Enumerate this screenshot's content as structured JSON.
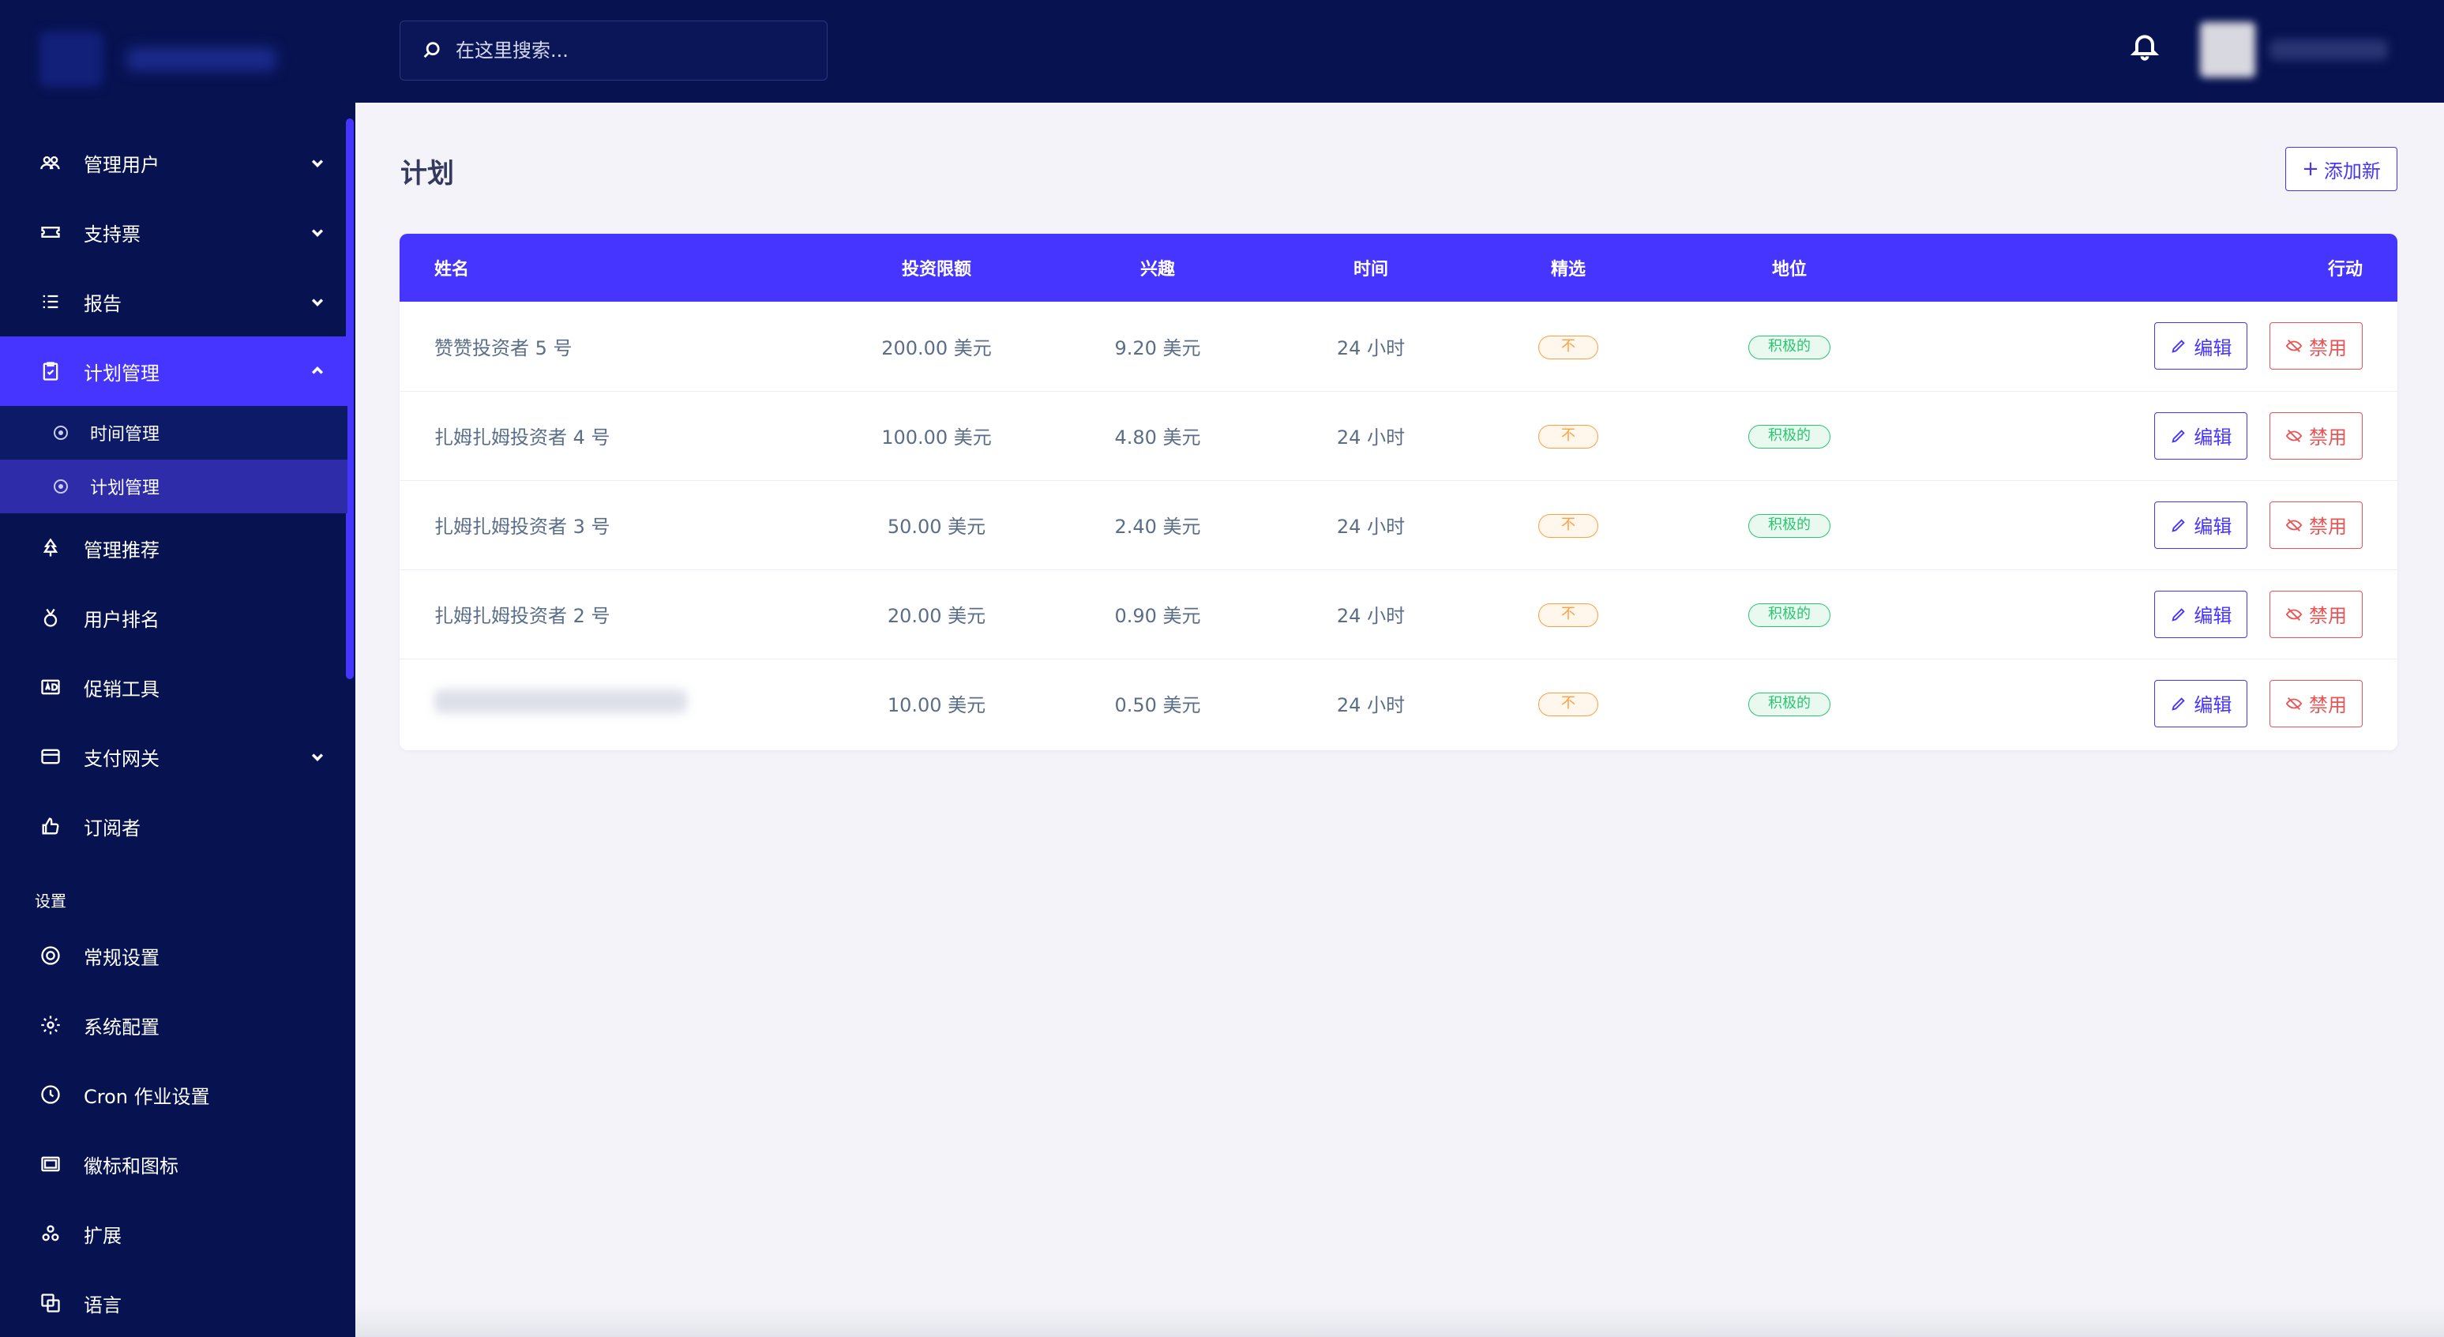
{
  "search": {
    "placeholder": "在这里搜索..."
  },
  "sidebar": {
    "items": [
      {
        "label": "管理用户",
        "icon": "users-cog-icon",
        "expandable": true
      },
      {
        "label": "支持票",
        "icon": "ticket-icon",
        "expandable": true
      },
      {
        "label": "报告",
        "icon": "list-icon",
        "expandable": true
      },
      {
        "label": "计划管理",
        "icon": "clipboard-check-icon",
        "expandable": true,
        "expanded": true,
        "active": true
      },
      {
        "label": "管理推荐",
        "icon": "tree-icon",
        "expandable": false
      },
      {
        "label": "用户排名",
        "icon": "medal-icon",
        "expandable": false
      },
      {
        "label": "促销工具",
        "icon": "ad-icon",
        "expandable": false
      },
      {
        "label": "支付网关",
        "icon": "credit-card-icon",
        "expandable": true
      },
      {
        "label": "订阅者",
        "icon": "thumbs-up-icon",
        "expandable": false
      }
    ],
    "sub_items": [
      {
        "label": "时间管理",
        "active": false
      },
      {
        "label": "计划管理",
        "active": true
      }
    ],
    "settings_label": "设置",
    "settings_items": [
      {
        "label": "常规设置",
        "icon": "life-ring-icon"
      },
      {
        "label": "系统配置",
        "icon": "gear-icon"
      },
      {
        "label": "Cron 作业设置",
        "icon": "clock-icon"
      },
      {
        "label": "徽标和图标",
        "icon": "images-icon"
      },
      {
        "label": "扩展",
        "icon": "cogs-icon"
      },
      {
        "label": "语言",
        "icon": "language-icon"
      }
    ]
  },
  "main": {
    "title": "计划",
    "add_button": "添加新",
    "table": {
      "headers": [
        "姓名",
        "投资限额",
        "兴趣",
        "时间",
        "精选",
        "地位",
        "行动"
      ],
      "rows": [
        {
          "name": "赞赞投资者 5 号",
          "limit": "200.00 美元",
          "interest": "9.20 美元",
          "time": "24 小时",
          "featured": "不",
          "status": "积极的"
        },
        {
          "name": "扎姆扎姆投资者 4 号",
          "limit": "100.00 美元",
          "interest": "4.80 美元",
          "time": "24 小时",
          "featured": "不",
          "status": "积极的"
        },
        {
          "name": "扎姆扎姆投资者 3 号",
          "limit": "50.00 美元",
          "interest": "2.40 美元",
          "time": "24 小时",
          "featured": "不",
          "status": "积极的"
        },
        {
          "name": "扎姆扎姆投资者 2 号",
          "limit": "20.00 美元",
          "interest": "0.90 美元",
          "time": "24 小时",
          "featured": "不",
          "status": "积极的"
        },
        {
          "name": "",
          "limit": "10.00 美元",
          "interest": "0.50 美元",
          "time": "24 小时",
          "featured": "不",
          "status": "积极的"
        }
      ],
      "edit_label": "编辑",
      "disable_label": "禁用"
    }
  },
  "colors": {
    "sidebar_bg": "#071251",
    "accent": "#4634ff",
    "warning": "#ff9f43",
    "success": "#28c76f",
    "danger": "#ea5455"
  }
}
